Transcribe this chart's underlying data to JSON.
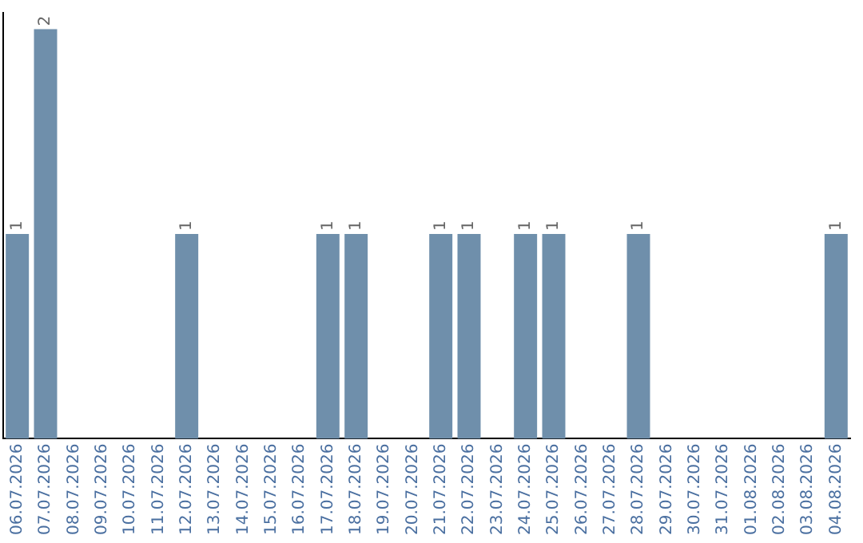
{
  "chart_data": {
    "type": "bar",
    "categories": [
      "06.07.2026",
      "07.07.2026",
      "08.07.2026",
      "09.07.2026",
      "10.07.2026",
      "11.07.2026",
      "12.07.2026",
      "13.07.2026",
      "14.07.2026",
      "15.07.2026",
      "16.07.2026",
      "17.07.2026",
      "18.07.2026",
      "19.07.2026",
      "20.07.2026",
      "21.07.2026",
      "22.07.2026",
      "23.07.2026",
      "24.07.2026",
      "25.07.2026",
      "26.07.2026",
      "27.07.2026",
      "28.07.2026",
      "29.07.2026",
      "30.07.2026",
      "31.07.2026",
      "01.08.2026",
      "02.08.2026",
      "03.08.2026",
      "04.08.2026"
    ],
    "values": [
      1,
      2,
      0,
      0,
      0,
      0,
      1,
      0,
      0,
      0,
      0,
      1,
      1,
      0,
      0,
      1,
      1,
      0,
      1,
      1,
      0,
      0,
      1,
      0,
      0,
      0,
      0,
      0,
      0,
      1
    ],
    "value_labels": [
      "1",
      "2",
      null,
      null,
      null,
      null,
      "1",
      null,
      null,
      null,
      null,
      "1",
      "1",
      null,
      null,
      "1",
      "1",
      null,
      "1",
      "1",
      null,
      null,
      "1",
      null,
      null,
      null,
      null,
      null,
      null,
      "1"
    ],
    "color": "#6f8fab",
    "ylim": [
      0,
      2.08
    ],
    "tick_labels": "x",
    "grid": false,
    "legend": false
  }
}
